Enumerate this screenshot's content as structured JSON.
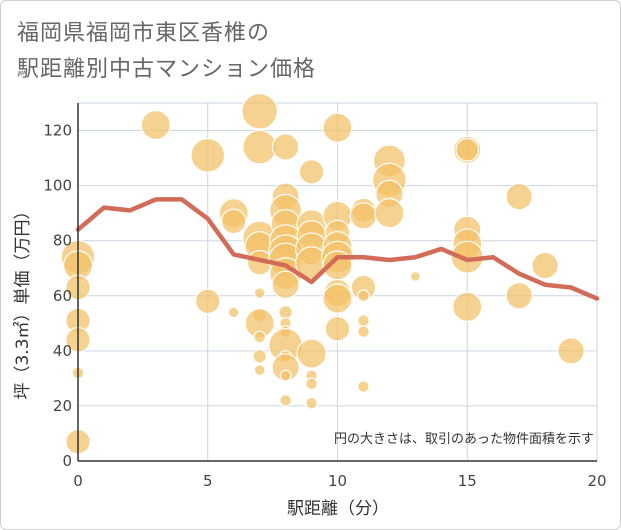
{
  "title_line1": "福岡県福岡市東区香椎の",
  "title_line2": "駅距離別中古マンション価格",
  "chart_data": {
    "type": "scatter",
    "xlabel": "駅距離（分）",
    "ylabel": "坪（3.3㎡）単価（万円）",
    "xlim": [
      0,
      20
    ],
    "ylim": [
      0,
      130
    ],
    "xticks": [
      0,
      5,
      10,
      15,
      20
    ],
    "yticks": [
      0,
      20,
      40,
      60,
      80,
      100,
      120
    ],
    "grid": true,
    "note": "円の大きさは、取引のあった物件面積を示す",
    "colors": {
      "bubble": "#f3c067",
      "line": "#d26b58",
      "grid": "#c9d6e4",
      "axis": "#333333"
    },
    "trend_line": {
      "x": [
        0,
        1,
        2,
        3,
        4,
        5,
        6,
        7,
        8,
        9,
        10,
        11,
        12,
        13,
        14,
        15,
        16,
        17,
        18,
        19,
        20
      ],
      "y": [
        84,
        92,
        91,
        95,
        95,
        88,
        75,
        73,
        71,
        65,
        74,
        74,
        73,
        74,
        77,
        73,
        74,
        68,
        64,
        63,
        59
      ]
    },
    "bubbles": [
      {
        "x": 0,
        "y": 74,
        "s": 3
      },
      {
        "x": 0,
        "y": 71,
        "s": 2.5
      },
      {
        "x": 0,
        "y": 63,
        "s": 2
      },
      {
        "x": 0,
        "y": 51,
        "s": 2
      },
      {
        "x": 0,
        "y": 44,
        "s": 2
      },
      {
        "x": 0,
        "y": 32,
        "s": 0.6
      },
      {
        "x": 0,
        "y": 7,
        "s": 2
      },
      {
        "x": 3,
        "y": 122,
        "s": 2.5
      },
      {
        "x": 5,
        "y": 111,
        "s": 3
      },
      {
        "x": 5,
        "y": 58,
        "s": 2
      },
      {
        "x": 6,
        "y": 90,
        "s": 2.5
      },
      {
        "x": 6,
        "y": 87,
        "s": 2
      },
      {
        "x": 6,
        "y": 54,
        "s": 0.5
      },
      {
        "x": 7,
        "y": 127,
        "s": 3.2
      },
      {
        "x": 7,
        "y": 114,
        "s": 3
      },
      {
        "x": 7,
        "y": 81,
        "s": 3
      },
      {
        "x": 7,
        "y": 78,
        "s": 2.5
      },
      {
        "x": 7,
        "y": 72,
        "s": 2
      },
      {
        "x": 7,
        "y": 61,
        "s": 0.5
      },
      {
        "x": 7,
        "y": 53,
        "s": 0.8
      },
      {
        "x": 7,
        "y": 50,
        "s": 2.5
      },
      {
        "x": 7,
        "y": 45,
        "s": 0.6
      },
      {
        "x": 7,
        "y": 38,
        "s": 0.8
      },
      {
        "x": 7,
        "y": 33,
        "s": 0.5
      },
      {
        "x": 8,
        "y": 114,
        "s": 2.2
      },
      {
        "x": 8,
        "y": 96,
        "s": 2.3
      },
      {
        "x": 8,
        "y": 91,
        "s": 2.8
      },
      {
        "x": 8,
        "y": 86,
        "s": 2.5
      },
      {
        "x": 8,
        "y": 80,
        "s": 2.8
      },
      {
        "x": 8,
        "y": 76,
        "s": 3
      },
      {
        "x": 8,
        "y": 73,
        "s": 3
      },
      {
        "x": 8,
        "y": 68,
        "s": 2.8
      },
      {
        "x": 8,
        "y": 64,
        "s": 2.3
      },
      {
        "x": 8,
        "y": 54,
        "s": 0.8
      },
      {
        "x": 8,
        "y": 50,
        "s": 0.6
      },
      {
        "x": 8,
        "y": 47,
        "s": 0.6
      },
      {
        "x": 8,
        "y": 42,
        "s": 3
      },
      {
        "x": 8,
        "y": 38,
        "s": 0.6
      },
      {
        "x": 8,
        "y": 34,
        "s": 2.3
      },
      {
        "x": 8,
        "y": 31,
        "s": 0.5
      },
      {
        "x": 8,
        "y": 22,
        "s": 0.6
      },
      {
        "x": 9,
        "y": 105,
        "s": 2
      },
      {
        "x": 9,
        "y": 86,
        "s": 2.5
      },
      {
        "x": 9,
        "y": 82,
        "s": 2.5
      },
      {
        "x": 9,
        "y": 77,
        "s": 2.8
      },
      {
        "x": 9,
        "y": 72,
        "s": 2.8
      },
      {
        "x": 9,
        "y": 39,
        "s": 2.5
      },
      {
        "x": 9,
        "y": 31,
        "s": 0.6
      },
      {
        "x": 9,
        "y": 28,
        "s": 0.6
      },
      {
        "x": 9,
        "y": 21,
        "s": 0.6
      },
      {
        "x": 10,
        "y": 121,
        "s": 2.5
      },
      {
        "x": 10,
        "y": 89,
        "s": 2.5
      },
      {
        "x": 10,
        "y": 83,
        "s": 2
      },
      {
        "x": 10,
        "y": 78,
        "s": 2.5
      },
      {
        "x": 10,
        "y": 74,
        "s": 2.8
      },
      {
        "x": 10,
        "y": 71,
        "s": 2.5
      },
      {
        "x": 10,
        "y": 61,
        "s": 2.3
      },
      {
        "x": 10,
        "y": 59,
        "s": 2.5
      },
      {
        "x": 10,
        "y": 48,
        "s": 2
      },
      {
        "x": 11,
        "y": 91,
        "s": 2
      },
      {
        "x": 11,
        "y": 89,
        "s": 2.2
      },
      {
        "x": 11,
        "y": 63,
        "s": 2
      },
      {
        "x": 11,
        "y": 60,
        "s": 0.6
      },
      {
        "x": 11,
        "y": 51,
        "s": 0.6
      },
      {
        "x": 11,
        "y": 47,
        "s": 0.6
      },
      {
        "x": 11,
        "y": 27,
        "s": 0.6
      },
      {
        "x": 12,
        "y": 109,
        "s": 2.8
      },
      {
        "x": 12,
        "y": 102,
        "s": 3
      },
      {
        "x": 12,
        "y": 97,
        "s": 2.3
      },
      {
        "x": 12,
        "y": 90,
        "s": 2.5
      },
      {
        "x": 13,
        "y": 67,
        "s": 0.4
      },
      {
        "x": 15,
        "y": 113,
        "s": 2.3
      },
      {
        "x": 15,
        "y": 113,
        "s": 1.8
      },
      {
        "x": 15,
        "y": 84,
        "s": 2.3
      },
      {
        "x": 15,
        "y": 79,
        "s": 2.5
      },
      {
        "x": 15,
        "y": 74,
        "s": 2.8
      },
      {
        "x": 15,
        "y": 56,
        "s": 2.5
      },
      {
        "x": 17,
        "y": 96,
        "s": 2.2
      },
      {
        "x": 17,
        "y": 60,
        "s": 2.2
      },
      {
        "x": 18,
        "y": 71,
        "s": 2.2
      },
      {
        "x": 19,
        "y": 40,
        "s": 2.2
      }
    ]
  }
}
